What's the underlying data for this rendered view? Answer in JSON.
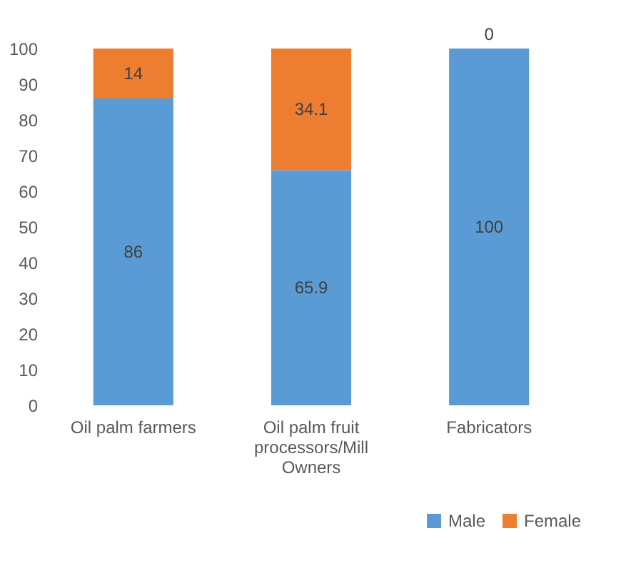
{
  "chart_data": {
    "type": "bar",
    "stacked": true,
    "categories": [
      "Oil palm farmers",
      "Oil palm fruit processors/Mill Owners",
      "Fabricators"
    ],
    "series": [
      {
        "name": "Male",
        "color": "#5b9bd5",
        "values": [
          86,
          65.9,
          100
        ]
      },
      {
        "name": "Female",
        "color": "#ed7d31",
        "values": [
          14,
          34.1,
          0
        ]
      }
    ],
    "ylim": [
      0,
      100
    ],
    "yticks": [
      0,
      10,
      20,
      30,
      40,
      50,
      60,
      70,
      80,
      90,
      100
    ],
    "grid": false,
    "data_labels": true,
    "legend": "bottom right"
  }
}
